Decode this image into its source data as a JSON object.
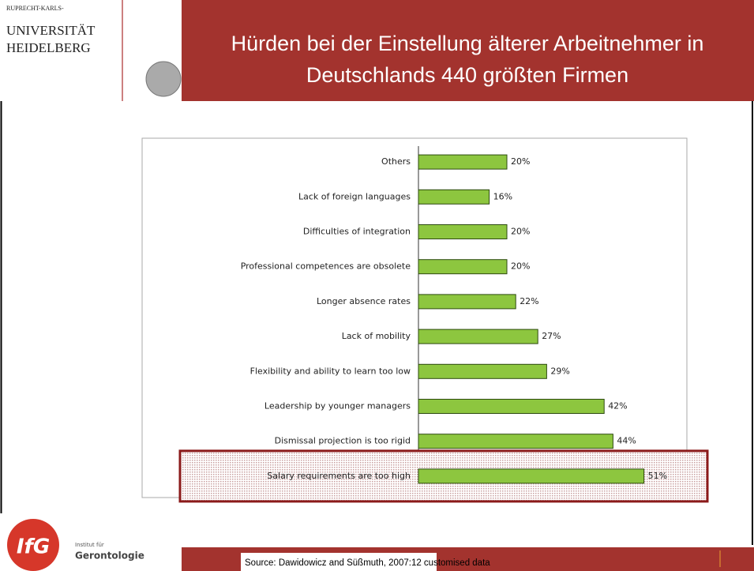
{
  "header": {
    "university": [
      "RUPRECHT-KARLS-",
      "UNIVERSITÄT",
      "HEIDELBERG"
    ],
    "title": [
      "Hürden bei der Einstellung älterer Arbeitnehmer in",
      "Deutschlands 440 größten Firmen"
    ]
  },
  "chart_data": {
    "type": "hbar",
    "color": "#8dc63f",
    "categories": [
      "Others",
      "Lack of foreign languages",
      "Difficulties of integration",
      "Professional competences are obsolete",
      "Longer absence rates",
      "Lack of mobility",
      "Flexibility and ability to learn too low",
      "Leadership by younger managers",
      "Dismissal projection is too rigid",
      "Salary requirements are too high"
    ],
    "values": [
      20,
      16,
      20,
      20,
      22,
      27,
      29,
      42,
      44,
      51
    ],
    "value_labels": [
      "20%",
      "16%",
      "20%",
      "20%",
      "22%",
      "27%",
      "29%",
      "42%",
      "44%",
      "51%"
    ],
    "xlim": [
      0,
      60
    ],
    "highlight": 9
  },
  "footer": {
    "source": "Source: Dawidowicz and Süßmuth, 2007:12 customised data",
    "logo": {
      "mark": "IfG",
      "lines": [
        "Institut für",
        "Gerontologie"
      ]
    }
  }
}
